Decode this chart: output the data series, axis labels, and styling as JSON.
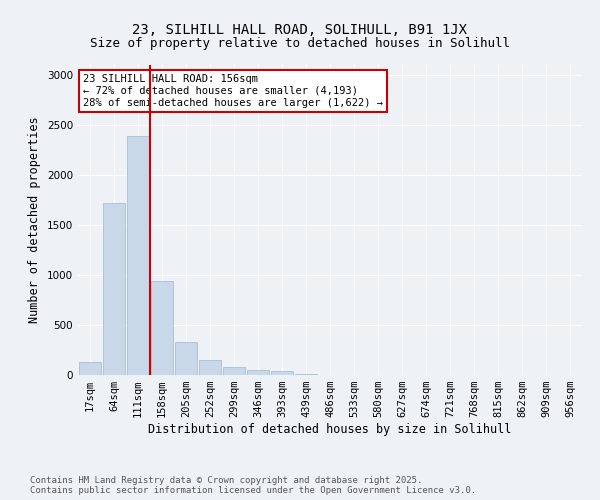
{
  "title_line1": "23, SILHILL HALL ROAD, SOLIHULL, B91 1JX",
  "title_line2": "Size of property relative to detached houses in Solihull",
  "xlabel": "Distribution of detached houses by size in Solihull",
  "ylabel": "Number of detached properties",
  "categories": [
    "17sqm",
    "64sqm",
    "111sqm",
    "158sqm",
    "205sqm",
    "252sqm",
    "299sqm",
    "346sqm",
    "393sqm",
    "439sqm",
    "486sqm",
    "533sqm",
    "580sqm",
    "627sqm",
    "674sqm",
    "721sqm",
    "768sqm",
    "815sqm",
    "862sqm",
    "909sqm",
    "956sqm"
  ],
  "values": [
    130,
    1720,
    2390,
    940,
    330,
    155,
    80,
    55,
    40,
    10,
    5,
    0,
    0,
    0,
    0,
    0,
    0,
    0,
    0,
    0,
    0
  ],
  "bar_color": "#c8d8e8",
  "bar_edge_color": "#a0b8cc",
  "marker_index": 2,
  "marker_color": "#cc0000",
  "annotation_text": "23 SILHILL HALL ROAD: 156sqm\n← 72% of detached houses are smaller (4,193)\n28% of semi-detached houses are larger (1,622) →",
  "annotation_box_edge": "#cc0000",
  "ylim": [
    0,
    3100
  ],
  "yticks": [
    0,
    500,
    1000,
    1500,
    2000,
    2500,
    3000
  ],
  "footer_text": "Contains HM Land Registry data © Crown copyright and database right 2025.\nContains public sector information licensed under the Open Government Licence v3.0.",
  "background_color": "#eef2f7",
  "grid_color": "#ffffff",
  "title_fontsize": 10,
  "subtitle_fontsize": 9,
  "axis_label_fontsize": 8.5,
  "tick_fontsize": 7.5,
  "annotation_fontsize": 7.5,
  "footer_fontsize": 6.5
}
